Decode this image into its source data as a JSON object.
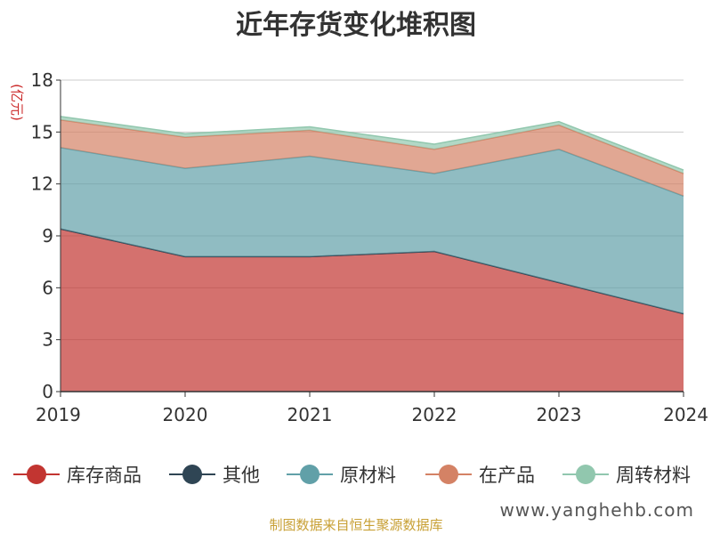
{
  "chart_data": {
    "type": "area",
    "stacked": true,
    "title": "近年存货变化堆积图",
    "ylabel": "(亿元)",
    "categories": [
      "2019",
      "2020",
      "2021",
      "2022",
      "2023",
      "2024"
    ],
    "ylim": [
      0,
      18
    ],
    "yticks": [
      0,
      3,
      6,
      9,
      12,
      15,
      18
    ],
    "grid": true,
    "legend_position": "bottom",
    "series": [
      {
        "name": "库存商品",
        "color": "#c23531",
        "values": [
          9.4,
          7.8,
          7.8,
          8.1,
          6.3,
          4.5
        ]
      },
      {
        "name": "其他",
        "color": "#2f4554",
        "values": [
          0.0,
          0.0,
          0.0,
          0.0,
          0.0,
          0.0
        ]
      },
      {
        "name": "原材料",
        "color": "#61a0a8",
        "values": [
          4.7,
          5.1,
          5.8,
          4.5,
          7.7,
          6.8
        ]
      },
      {
        "name": "在产品",
        "color": "#d48265",
        "values": [
          1.6,
          1.8,
          1.5,
          1.4,
          1.4,
          1.3
        ]
      },
      {
        "name": "周转材料",
        "color": "#91c7ae",
        "values": [
          0.2,
          0.2,
          0.2,
          0.3,
          0.2,
          0.2
        ]
      }
    ]
  },
  "footer": {
    "source": "制图数据来自恒生聚源数据库",
    "watermark": "www.yanghehb.com"
  }
}
